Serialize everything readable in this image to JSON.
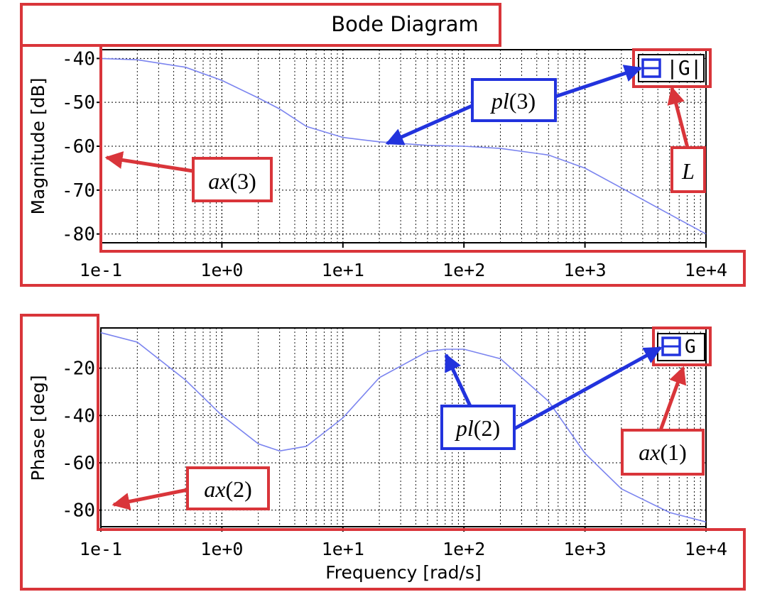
{
  "colors": {
    "curve": "#7b84ef",
    "annotation_red": "#d9353a",
    "annotation_blue": "#2233dd",
    "grid": "#000000"
  },
  "figure": {
    "title": "Bode Diagram",
    "xlabel": "Frequency [rad/s]"
  },
  "chart_data": [
    {
      "type": "line",
      "title": "Bode Diagram",
      "ylabel": "Magnitude [dB]",
      "xscale": "log",
      "xlim": [
        0.1,
        10000
      ],
      "ylim": [
        -82,
        -38
      ],
      "xticks": [
        "1e-1",
        "1e+0",
        "1e+1",
        "1e+2",
        "1e+3",
        "1e+4"
      ],
      "yticks": [
        "-40",
        "-50",
        "-60",
        "-70",
        "-80"
      ],
      "ytick_values": [
        -40,
        -50,
        -60,
        -70,
        -80
      ],
      "grid": true,
      "legend": {
        "label": "|G|",
        "placement": "top-right"
      },
      "series": [
        {
          "name": "|G|",
          "x": [
            0.1,
            0.2,
            0.5,
            1,
            2,
            3,
            5,
            10,
            20,
            50,
            100,
            200,
            500,
            1000,
            2000,
            5000,
            10000
          ],
          "y": [
            -40,
            -40.3,
            -42,
            -45,
            -49,
            -51.5,
            -55.5,
            -58,
            -59,
            -59.8,
            -60,
            -60.5,
            -62,
            -65,
            -69.5,
            -75.5,
            -80
          ]
        }
      ]
    },
    {
      "type": "line",
      "ylabel": "Phase [deg]",
      "xlabel": "Frequency [rad/s]",
      "xscale": "log",
      "xlim": [
        0.1,
        10000
      ],
      "ylim": [
        -87,
        -3
      ],
      "xticks": [
        "1e-1",
        "1e+0",
        "1e+1",
        "1e+2",
        "1e+3",
        "1e+4"
      ],
      "yticks": [
        "-20",
        "-40",
        "-60",
        "-80"
      ],
      "ytick_values": [
        -20,
        -40,
        -60,
        -80
      ],
      "grid": true,
      "legend": {
        "label": "G",
        "placement": "top-right"
      },
      "series": [
        {
          "name": "G",
          "x": [
            0.1,
            0.2,
            0.5,
            1,
            2,
            3,
            5,
            10,
            20,
            50,
            70,
            100,
            200,
            500,
            1000,
            2000,
            5000,
            10000
          ],
          "y": [
            -5,
            -9,
            -25,
            -40,
            -52,
            -55,
            -53,
            -41,
            -24,
            -13,
            -12,
            -12,
            -16,
            -34,
            -56,
            -71,
            -81,
            -85
          ]
        }
      ]
    }
  ],
  "annotations": [
    {
      "label": "ax(3)",
      "italic": "ax",
      "rest": "(3)",
      "color": "red"
    },
    {
      "label": "pl(3)",
      "italic": "pl",
      "rest": "(3)",
      "color": "blue"
    },
    {
      "label": "L",
      "italic": "L",
      "rest": "",
      "color": "red"
    },
    {
      "label": "ax(2)",
      "italic": "ax",
      "rest": "(2)",
      "color": "red"
    },
    {
      "label": "pl(2)",
      "italic": "pl",
      "rest": "(2)",
      "color": "blue"
    },
    {
      "label": "ax(1)",
      "italic": "ax",
      "rest": "(1)",
      "color": "red"
    }
  ]
}
